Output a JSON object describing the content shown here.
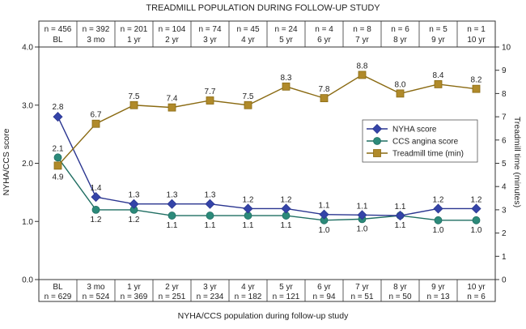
{
  "chart_data": {
    "type": "line",
    "title": "TREADMILL POPULATION DURING FOLLOW-UP STUDY",
    "xlabel": "NYHA/CCS population during follow-up study",
    "ylabel_left": "NYHA/CCS score",
    "ylabel_right": "Treadmill time (minutes)",
    "categories": [
      "BL",
      "3 mo",
      "1 yr",
      "2 yr",
      "3 yr",
      "4 yr",
      "5 yr",
      "6 yr",
      "7 yr",
      "8 yr",
      "9 yr",
      "10 yr"
    ],
    "top_counts": [
      "n = 456",
      "n = 392",
      "n = 201",
      "n = 104",
      "n = 74",
      "n = 45",
      "n = 24",
      "n = 4",
      "n = 8",
      "n = 6",
      "n = 5",
      "n = 1"
    ],
    "bottom_counts": [
      "n = 629",
      "n = 524",
      "n = 369",
      "n = 251",
      "n = 234",
      "n = 182",
      "n = 121",
      "n = 94",
      "n = 51",
      "n = 50",
      "n = 13",
      "n = 6"
    ],
    "ylim_left": [
      0,
      4
    ],
    "yticks_left": [
      "0.0",
      "1.0",
      "2.0",
      "3.0",
      "4.0"
    ],
    "ylim_right": [
      0,
      10
    ],
    "yticks_right": [
      "0",
      "1",
      "2",
      "3",
      "4",
      "5",
      "6",
      "7",
      "8",
      "9",
      "10"
    ],
    "series": [
      {
        "name": "NYHA score",
        "axis": "left",
        "color": "#2a3590",
        "marker": "diamond",
        "values": [
          2.8,
          1.42,
          1.3,
          1.3,
          1.3,
          1.22,
          1.22,
          1.12,
          1.11,
          1.1,
          1.22,
          1.22
        ],
        "labels": [
          "2.8",
          "1.4",
          "1.3",
          "1.3",
          "1.3",
          "1.2",
          "1.2",
          "1.1",
          "1.1",
          "1.1",
          "1.2",
          "1.2"
        ]
      },
      {
        "name": "CCS angina score",
        "axis": "left",
        "color": "#1f6e62",
        "marker": "circle",
        "values": [
          2.1,
          1.2,
          1.2,
          1.1,
          1.1,
          1.1,
          1.1,
          1.02,
          1.04,
          1.1,
          1.02,
          1.02
        ],
        "labels": [
          "2.1",
          "1.2",
          "1.2",
          "1.1",
          "1.1",
          "1.1",
          "1.1",
          "1.0",
          "1.0",
          "1.1",
          "1.0",
          "1.0"
        ]
      },
      {
        "name": "Treadmill time (min)",
        "axis": "right",
        "color": "#8a6a12",
        "marker": "square",
        "values": [
          4.9,
          6.7,
          7.5,
          7.4,
          7.7,
          7.5,
          8.3,
          7.8,
          8.8,
          8.0,
          8.4,
          8.2
        ],
        "labels": [
          "4.9",
          "6.7",
          "7.5",
          "7.4",
          "7.7",
          "7.5",
          "8.3",
          "7.8",
          "8.8",
          "8.0",
          "8.4",
          "8.2"
        ]
      }
    ],
    "legend_position": "right-middle"
  },
  "colors": {
    "axis": "#333333",
    "nyha_fill": "#3444a8",
    "ccs_fill": "#2c8a7a",
    "treadmill_fill": "#b08a2a"
  }
}
